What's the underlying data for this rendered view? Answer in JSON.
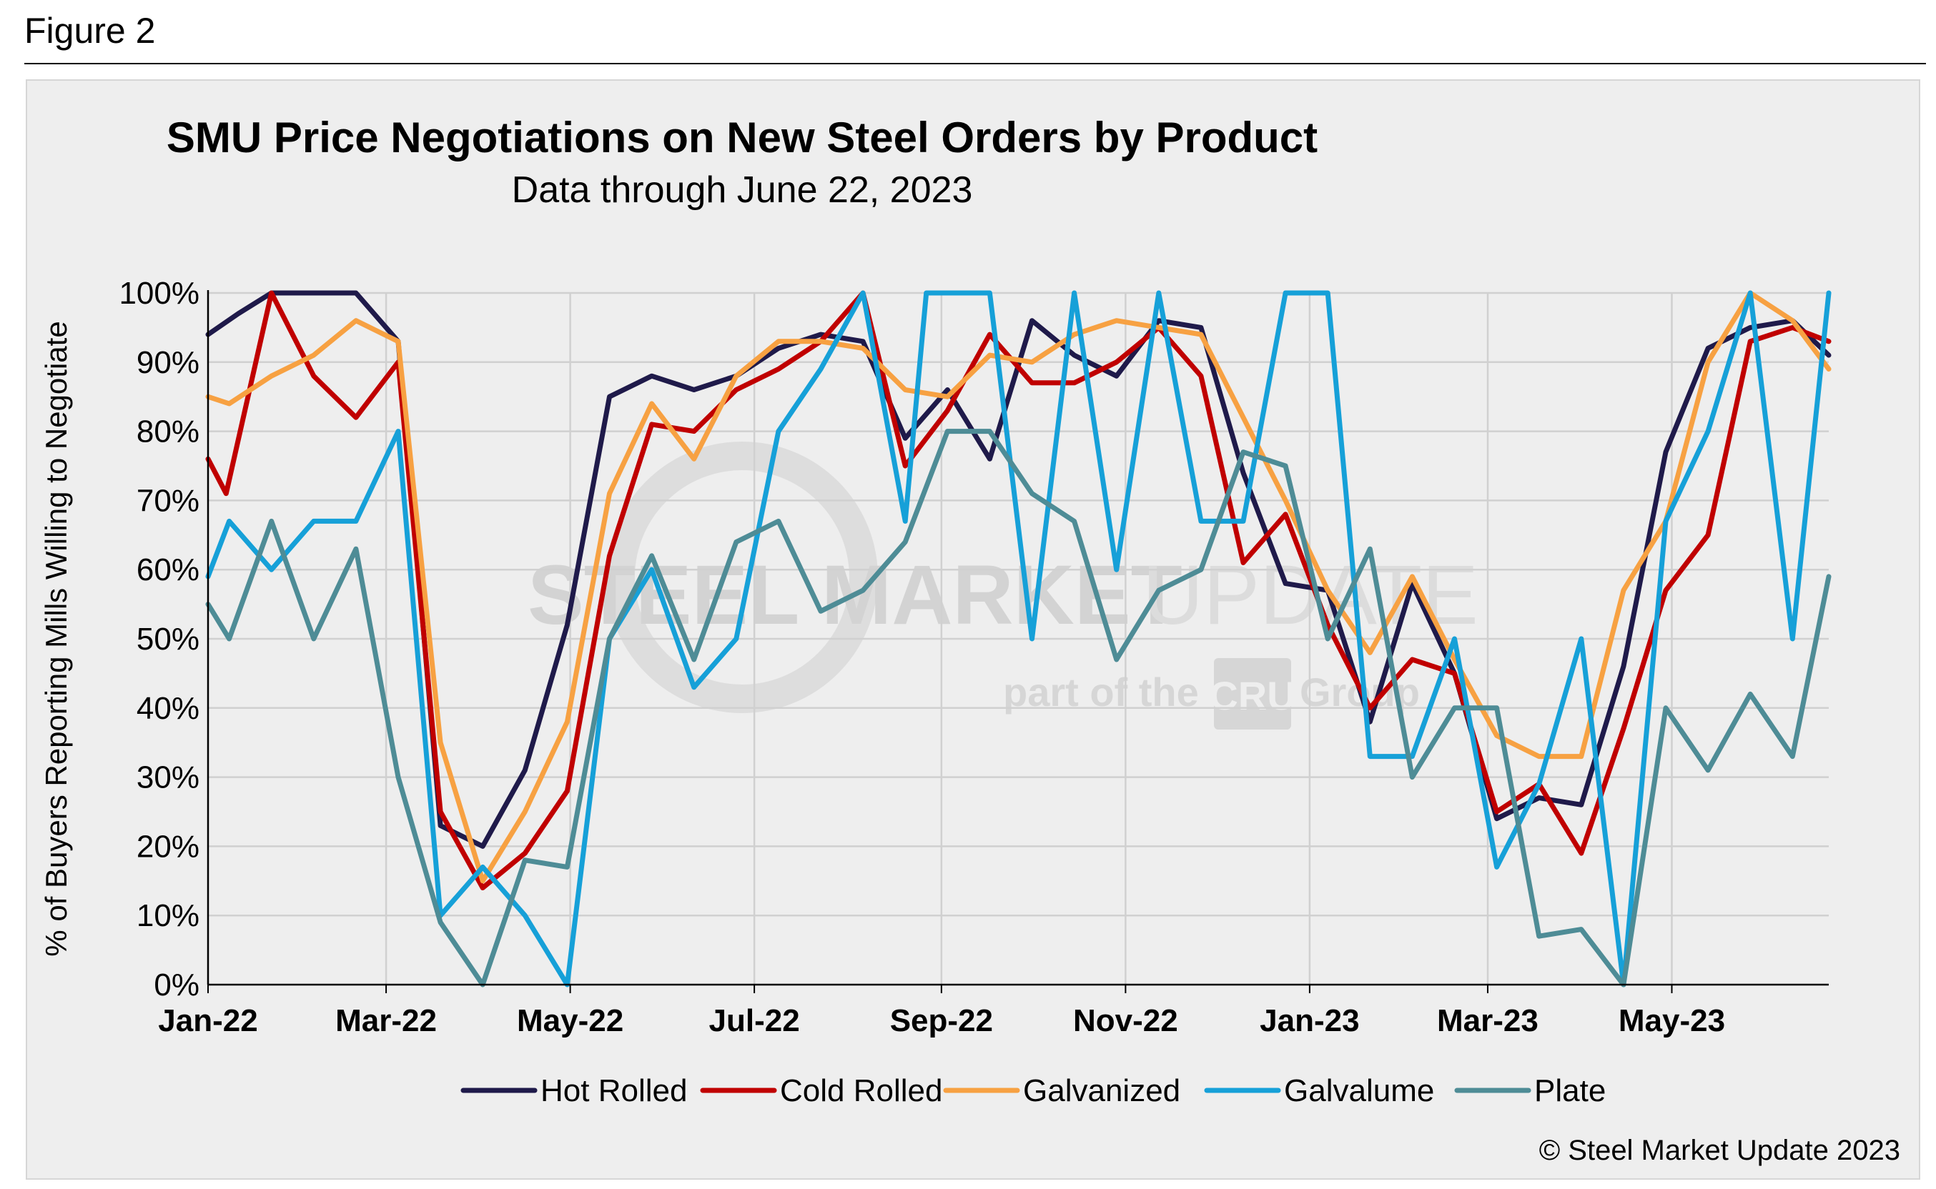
{
  "figure_label": "Figure 2",
  "credit": "© Steel Market Update 2023",
  "watermark": {
    "line1_bold": "STEEL MARKET",
    "line1_light": "UPDATE",
    "line2_left": "part of the",
    "line2_badge": "CRU",
    "line2_right": "Group"
  },
  "chart_data": {
    "type": "line",
    "title": "SMU Price Negotiations on New Steel Orders by Product",
    "subtitle": "Data through June 22, 2023",
    "ylabel": "% of Buyers Reporting Mills Willing to Negotiate",
    "xlabel": "",
    "ylim": [
      0,
      100
    ],
    "y_ticks": [
      0,
      10,
      20,
      30,
      40,
      50,
      60,
      70,
      80,
      90,
      100
    ],
    "y_tick_labels": [
      "0%",
      "10%",
      "20%",
      "30%",
      "40%",
      "50%",
      "60%",
      "70%",
      "80%",
      "90%",
      "100%"
    ],
    "x_date_range": [
      "2022-01-01",
      "2023-06-22"
    ],
    "x_ticks": [
      "2022-01-01",
      "2022-03-01",
      "2022-05-01",
      "2022-07-01",
      "2022-09-01",
      "2022-11-01",
      "2023-01-01",
      "2023-03-01",
      "2023-05-01"
    ],
    "x_tick_labels": [
      "Jan-22",
      "Mar-22",
      "May-22",
      "Jul-22",
      "Sep-22",
      "Nov-22",
      "Jan-23",
      "Mar-23",
      "May-23"
    ],
    "grid": true,
    "legend": "bottom",
    "series": [
      {
        "name": "Hot Rolled",
        "color": "#1f1a4a",
        "points": [
          [
            "2022-01-01",
            94
          ],
          [
            "2022-01-11",
            97
          ],
          [
            "2022-01-22",
            100
          ],
          [
            "2022-02-05",
            100
          ],
          [
            "2022-02-19",
            100
          ],
          [
            "2022-03-05",
            93
          ],
          [
            "2022-03-19",
            23
          ],
          [
            "2022-04-02",
            20
          ],
          [
            "2022-04-16",
            31
          ],
          [
            "2022-04-30",
            52
          ],
          [
            "2022-05-14",
            85
          ],
          [
            "2022-05-28",
            88
          ],
          [
            "2022-06-11",
            86
          ],
          [
            "2022-06-25",
            88
          ],
          [
            "2022-07-09",
            92
          ],
          [
            "2022-07-23",
            94
          ],
          [
            "2022-08-06",
            93
          ],
          [
            "2022-08-20",
            79
          ],
          [
            "2022-09-03",
            86
          ],
          [
            "2022-09-17",
            76
          ],
          [
            "2022-10-01",
            96
          ],
          [
            "2022-10-15",
            91
          ],
          [
            "2022-10-29",
            88
          ],
          [
            "2022-11-12",
            96
          ],
          [
            "2022-11-26",
            95
          ],
          [
            "2022-12-10",
            74
          ],
          [
            "2022-12-24",
            58
          ],
          [
            "2023-01-07",
            57
          ],
          [
            "2023-01-21",
            38
          ],
          [
            "2023-02-04",
            58
          ],
          [
            "2023-02-18",
            45
          ],
          [
            "2023-03-04",
            24
          ],
          [
            "2023-03-18",
            27
          ],
          [
            "2023-04-01",
            26
          ],
          [
            "2023-04-15",
            46
          ],
          [
            "2023-04-29",
            77
          ],
          [
            "2023-05-13",
            92
          ],
          [
            "2023-05-27",
            95
          ],
          [
            "2023-06-10",
            96
          ],
          [
            "2023-06-22",
            91
          ]
        ]
      },
      {
        "name": "Cold Rolled",
        "color": "#c00000",
        "points": [
          [
            "2022-01-01",
            76
          ],
          [
            "2022-01-07",
            71
          ],
          [
            "2022-01-22",
            100
          ],
          [
            "2022-02-05",
            88
          ],
          [
            "2022-02-19",
            82
          ],
          [
            "2022-03-05",
            90
          ],
          [
            "2022-03-19",
            25
          ],
          [
            "2022-04-02",
            14
          ],
          [
            "2022-04-16",
            19
          ],
          [
            "2022-04-30",
            28
          ],
          [
            "2022-05-14",
            62
          ],
          [
            "2022-05-28",
            81
          ],
          [
            "2022-06-11",
            80
          ],
          [
            "2022-06-25",
            86
          ],
          [
            "2022-07-09",
            89
          ],
          [
            "2022-07-23",
            93
          ],
          [
            "2022-08-06",
            100
          ],
          [
            "2022-08-20",
            75
          ],
          [
            "2022-09-03",
            83
          ],
          [
            "2022-09-17",
            94
          ],
          [
            "2022-10-01",
            87
          ],
          [
            "2022-10-15",
            87
          ],
          [
            "2022-10-29",
            90
          ],
          [
            "2022-11-12",
            95
          ],
          [
            "2022-11-26",
            88
          ],
          [
            "2022-12-10",
            61
          ],
          [
            "2022-12-24",
            68
          ],
          [
            "2023-01-07",
            52
          ],
          [
            "2023-01-21",
            40
          ],
          [
            "2023-02-04",
            47
          ],
          [
            "2023-02-18",
            45
          ],
          [
            "2023-03-04",
            25
          ],
          [
            "2023-03-18",
            29
          ],
          [
            "2023-04-01",
            19
          ],
          [
            "2023-04-15",
            37
          ],
          [
            "2023-04-29",
            57
          ],
          [
            "2023-05-13",
            65
          ],
          [
            "2023-05-27",
            93
          ],
          [
            "2023-06-10",
            95
          ],
          [
            "2023-06-22",
            93
          ]
        ]
      },
      {
        "name": "Galvanized",
        "color": "#f7a142",
        "points": [
          [
            "2022-01-01",
            85
          ],
          [
            "2022-01-08",
            84
          ],
          [
            "2022-01-22",
            88
          ],
          [
            "2022-02-05",
            91
          ],
          [
            "2022-02-19",
            96
          ],
          [
            "2022-03-05",
            93
          ],
          [
            "2022-03-19",
            35
          ],
          [
            "2022-04-02",
            15
          ],
          [
            "2022-04-16",
            25
          ],
          [
            "2022-04-30",
            38
          ],
          [
            "2022-05-14",
            71
          ],
          [
            "2022-05-28",
            84
          ],
          [
            "2022-06-11",
            76
          ],
          [
            "2022-06-25",
            88
          ],
          [
            "2022-07-09",
            93
          ],
          [
            "2022-07-23",
            93
          ],
          [
            "2022-08-06",
            92
          ],
          [
            "2022-08-20",
            86
          ],
          [
            "2022-09-03",
            85
          ],
          [
            "2022-09-17",
            91
          ],
          [
            "2022-10-01",
            90
          ],
          [
            "2022-10-15",
            94
          ],
          [
            "2022-10-29",
            96
          ],
          [
            "2022-11-12",
            95
          ],
          [
            "2022-11-26",
            94
          ],
          [
            "2022-12-10",
            82
          ],
          [
            "2022-12-24",
            70
          ],
          [
            "2023-01-07",
            57
          ],
          [
            "2023-01-21",
            48
          ],
          [
            "2023-02-04",
            59
          ],
          [
            "2023-02-18",
            47
          ],
          [
            "2023-03-04",
            36
          ],
          [
            "2023-03-18",
            33
          ],
          [
            "2023-04-01",
            33
          ],
          [
            "2023-04-15",
            57
          ],
          [
            "2023-04-29",
            67
          ],
          [
            "2023-05-13",
            90
          ],
          [
            "2023-05-27",
            100
          ],
          [
            "2023-06-10",
            96
          ],
          [
            "2023-06-22",
            89
          ]
        ]
      },
      {
        "name": "Galvalume",
        "color": "#16a0d8",
        "points": [
          [
            "2022-01-01",
            59
          ],
          [
            "2022-01-08",
            67
          ],
          [
            "2022-01-22",
            60
          ],
          [
            "2022-02-05",
            67
          ],
          [
            "2022-02-19",
            67
          ],
          [
            "2022-03-05",
            80
          ],
          [
            "2022-03-19",
            10
          ],
          [
            "2022-04-02",
            17
          ],
          [
            "2022-04-16",
            10
          ],
          [
            "2022-04-30",
            0
          ],
          [
            "2022-05-14",
            50
          ],
          [
            "2022-05-28",
            60
          ],
          [
            "2022-06-11",
            43
          ],
          [
            "2022-06-25",
            50
          ],
          [
            "2022-07-09",
            80
          ],
          [
            "2022-07-23",
            89
          ],
          [
            "2022-08-06",
            100
          ],
          [
            "2022-08-20",
            67
          ],
          [
            "2022-08-27",
            100
          ],
          [
            "2022-09-10",
            100
          ],
          [
            "2022-09-17",
            100
          ],
          [
            "2022-10-01",
            50
          ],
          [
            "2022-10-15",
            100
          ],
          [
            "2022-10-29",
            60
          ],
          [
            "2022-11-12",
            100
          ],
          [
            "2022-11-26",
            67
          ],
          [
            "2022-12-10",
            67
          ],
          [
            "2022-12-24",
            100
          ],
          [
            "2023-01-07",
            100
          ],
          [
            "2023-01-21",
            33
          ],
          [
            "2023-02-04",
            33
          ],
          [
            "2023-02-18",
            50
          ],
          [
            "2023-03-04",
            17
          ],
          [
            "2023-03-18",
            29
          ],
          [
            "2023-04-01",
            50
          ],
          [
            "2023-04-15",
            0
          ],
          [
            "2023-04-29",
            67
          ],
          [
            "2023-05-13",
            80
          ],
          [
            "2023-05-27",
            100
          ],
          [
            "2023-06-10",
            50
          ],
          [
            "2023-06-22",
            100
          ]
        ]
      },
      {
        "name": "Plate",
        "color": "#4e8c96",
        "points": [
          [
            "2022-01-01",
            55
          ],
          [
            "2022-01-08",
            50
          ],
          [
            "2022-01-22",
            67
          ],
          [
            "2022-02-05",
            50
          ],
          [
            "2022-02-19",
            63
          ],
          [
            "2022-03-05",
            30
          ],
          [
            "2022-03-19",
            9
          ],
          [
            "2022-04-02",
            0
          ],
          [
            "2022-04-16",
            18
          ],
          [
            "2022-04-30",
            17
          ],
          [
            "2022-05-14",
            50
          ],
          [
            "2022-05-28",
            62
          ],
          [
            "2022-06-11",
            47
          ],
          [
            "2022-06-25",
            64
          ],
          [
            "2022-07-09",
            67
          ],
          [
            "2022-07-23",
            54
          ],
          [
            "2022-08-06",
            57
          ],
          [
            "2022-08-20",
            64
          ],
          [
            "2022-09-03",
            80
          ],
          [
            "2022-09-17",
            80
          ],
          [
            "2022-10-01",
            71
          ],
          [
            "2022-10-15",
            67
          ],
          [
            "2022-10-29",
            47
          ],
          [
            "2022-11-12",
            57
          ],
          [
            "2022-11-26",
            60
          ],
          [
            "2022-12-10",
            77
          ],
          [
            "2022-12-24",
            75
          ],
          [
            "2023-01-07",
            50
          ],
          [
            "2023-01-21",
            63
          ],
          [
            "2023-02-04",
            30
          ],
          [
            "2023-02-18",
            40
          ],
          [
            "2023-03-04",
            40
          ],
          [
            "2023-03-18",
            7
          ],
          [
            "2023-04-01",
            8
          ],
          [
            "2023-04-15",
            0
          ],
          [
            "2023-04-29",
            40
          ],
          [
            "2023-05-13",
            31
          ],
          [
            "2023-05-27",
            42
          ],
          [
            "2023-06-10",
            33
          ],
          [
            "2023-06-22",
            59
          ]
        ]
      }
    ]
  }
}
